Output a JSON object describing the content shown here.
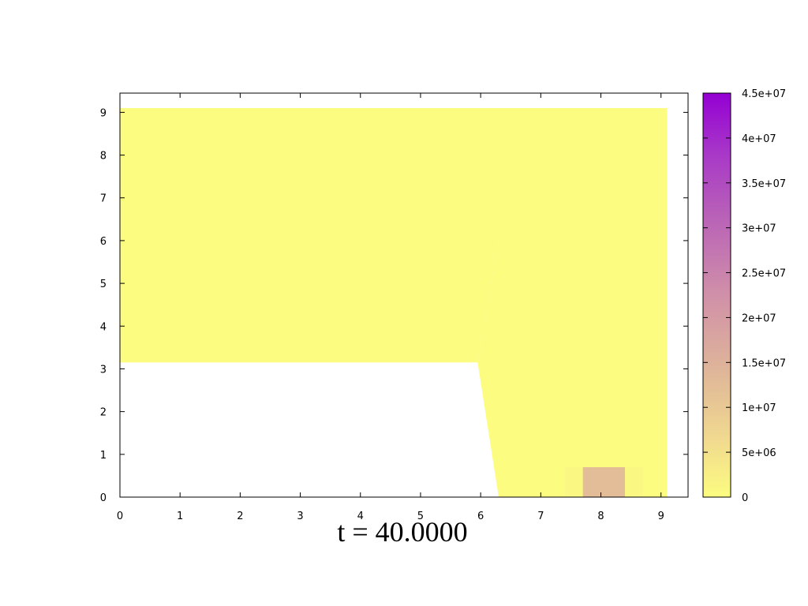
{
  "chart_data": {
    "type": "heatmap",
    "caption": "t = 40.0000",
    "xlim": [
      0,
      9.45
    ],
    "ylim": [
      0,
      9.45
    ],
    "x_ticks": [
      "0",
      "1",
      "2",
      "3",
      "4",
      "5",
      "6",
      "7",
      "8",
      "9"
    ],
    "y_ticks": [
      "0",
      "1",
      "2",
      "3",
      "4",
      "5",
      "6",
      "7",
      "8",
      "9"
    ],
    "colorbar": {
      "range": [
        0,
        45000000
      ],
      "ticks": [
        0,
        5000000,
        10000000,
        15000000,
        20000000,
        25000000,
        30000000,
        35000000,
        40000000,
        45000000
      ],
      "tick_labels": [
        "0",
        "5e+06",
        "1e+07",
        "1.5e+07",
        "2e+07",
        "2.5e+07",
        "3e+07",
        "3.5e+07",
        "4e+07",
        "4.5e+07"
      ],
      "low_color": "#fcfc80",
      "high_color": "#9400d3"
    },
    "regions": [
      {
        "name": "left-band",
        "value": 0,
        "points": [
          [
            0,
            3.15
          ],
          [
            5.95,
            3.15
          ],
          [
            6.3,
            6.05
          ],
          [
            6.3,
            9.1
          ],
          [
            5.95,
            9.1
          ],
          [
            0,
            9.1
          ]
        ]
      },
      {
        "name": "right-block",
        "value": 0,
        "points": [
          [
            5.95,
            3.15
          ],
          [
            6.3,
            0
          ],
          [
            9.1,
            0
          ],
          [
            9.1,
            9.1
          ],
          [
            6.3,
            9.1
          ],
          [
            6.3,
            6.05
          ]
        ]
      }
    ],
    "cells": [
      {
        "x0": 7.4,
        "x1": 7.7,
        "y0": 0,
        "y1": 0.7,
        "value": 1000000
      },
      {
        "x0": 8.4,
        "x1": 8.7,
        "y0": 0,
        "y1": 0.7,
        "value": 1000000
      },
      {
        "x0": 7.7,
        "x1": 8.4,
        "y0": 0,
        "y1": 0.7,
        "value": 12500000
      }
    ]
  }
}
